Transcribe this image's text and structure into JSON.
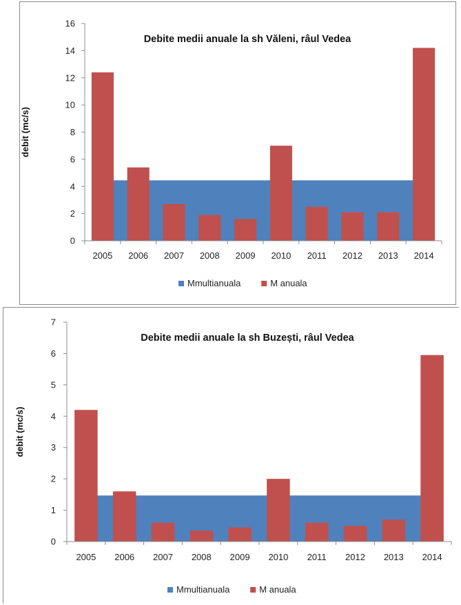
{
  "chart_data": [
    {
      "type": "bar",
      "title": "Debite medii anuale la sh Văleni, râul Vedea",
      "ylabel": "debit (mc/s)",
      "xlabel": "",
      "categories": [
        "2005",
        "2006",
        "2007",
        "2008",
        "2009",
        "2010",
        "2011",
        "2012",
        "2013",
        "2014"
      ],
      "ylim": [
        0,
        16
      ],
      "yticks": [
        "0",
        "2",
        "4",
        "6",
        "8",
        "10",
        "12",
        "14",
        "16"
      ],
      "grid": false,
      "legend_position": "bottom",
      "series": [
        {
          "name": "Mmultianuala",
          "color": "#4f81bd",
          "render": "area",
          "values": [
            4.45,
            4.45,
            4.45,
            4.45,
            4.45,
            4.45,
            4.45,
            4.45,
            4.45,
            4.45
          ]
        },
        {
          "name": "M anuala",
          "color": "#c0504d",
          "render": "bar",
          "values": [
            12.4,
            5.4,
            2.7,
            1.9,
            1.6,
            7.0,
            2.5,
            2.1,
            2.1,
            14.2
          ]
        }
      ]
    },
    {
      "type": "bar",
      "title": "Debite medii anuale la sh Buzești, râul Vedea",
      "ylabel": "debit (mc/s)",
      "xlabel": "",
      "categories": [
        "2005",
        "2006",
        "2007",
        "2008",
        "2009",
        "2010",
        "2011",
        "2012",
        "2013",
        "2014"
      ],
      "ylim": [
        0,
        7
      ],
      "yticks": [
        "0",
        "1",
        "2",
        "3",
        "4",
        "5",
        "6",
        "7"
      ],
      "grid": false,
      "legend_position": "bottom",
      "series": [
        {
          "name": "Mmultianuala",
          "color": "#4f81bd",
          "render": "area",
          "values": [
            1.47,
            1.47,
            1.47,
            1.47,
            1.47,
            1.47,
            1.47,
            1.47,
            1.47,
            1.47
          ]
        },
        {
          "name": "M anuala",
          "color": "#c0504d",
          "render": "bar",
          "values": [
            4.2,
            1.6,
            0.6,
            0.35,
            0.45,
            2.0,
            0.6,
            0.5,
            0.7,
            5.95
          ]
        }
      ]
    }
  ]
}
